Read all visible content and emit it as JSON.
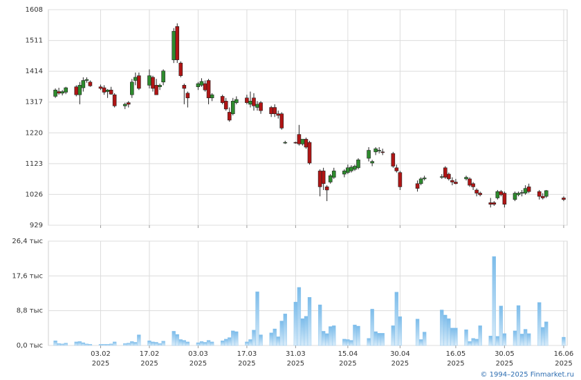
{
  "chart_data": [
    {
      "type": "candlestick",
      "x": [
        "2025-01-21",
        "2025-01-22",
        "2025-01-23",
        "2025-01-24",
        "2025-01-27",
        "2025-01-28",
        "2025-01-29",
        "2025-01-30",
        "2025-01-31",
        "2025-02-03",
        "2025-02-04",
        "2025-02-05",
        "2025-02-06",
        "2025-02-07",
        "2025-02-10",
        "2025-02-11",
        "2025-02-12",
        "2025-02-13",
        "2025-02-14",
        "2025-02-17",
        "2025-02-18",
        "2025-02-19",
        "2025-02-20",
        "2025-02-21",
        "2025-02-24",
        "2025-02-25",
        "2025-02-26",
        "2025-02-27",
        "2025-02-28",
        "2025-03-03",
        "2025-03-04",
        "2025-03-05",
        "2025-03-06",
        "2025-03-07",
        "2025-03-10",
        "2025-03-11",
        "2025-03-12",
        "2025-03-13",
        "2025-03-14",
        "2025-03-17",
        "2025-03-18",
        "2025-03-19",
        "2025-03-20",
        "2025-03-21",
        "2025-03-24",
        "2025-03-25",
        "2025-03-26",
        "2025-03-27",
        "2025-03-28",
        "2025-03-31",
        "2025-04-01",
        "2025-04-02",
        "2025-04-03",
        "2025-04-04",
        "2025-04-07",
        "2025-04-08",
        "2025-04-09",
        "2025-04-10",
        "2025-04-11",
        "2025-04-14",
        "2025-04-15",
        "2025-04-16",
        "2025-04-17",
        "2025-04-18",
        "2025-04-21",
        "2025-04-22",
        "2025-04-23",
        "2025-04-24",
        "2025-04-25",
        "2025-04-28",
        "2025-04-29",
        "2025-04-30",
        "2025-05-05",
        "2025-05-06",
        "2025-05-07",
        "2025-05-12",
        "2025-05-13",
        "2025-05-14",
        "2025-05-15",
        "2025-05-16",
        "2025-05-19",
        "2025-05-20",
        "2025-05-21",
        "2025-05-22",
        "2025-05-23",
        "2025-05-26",
        "2025-05-27",
        "2025-05-28",
        "2025-05-29",
        "2025-05-30",
        "2025-06-02",
        "2025-06-03",
        "2025-06-04",
        "2025-06-05",
        "2025-06-06",
        "2025-06-09",
        "2025-06-10",
        "2025-06-11",
        "2025-06-16"
      ],
      "open": [
        1335,
        1350,
        1345,
        1348,
        1365,
        1340,
        1362,
        1385,
        1380,
        1365,
        1362,
        1350,
        1355,
        1340,
        1305,
        1315,
        1340,
        1385,
        1400,
        1370,
        1395,
        1370,
        1365,
        1380,
        1450,
        1555,
        1440,
        1370,
        1345,
        1365,
        1370,
        1375,
        1385,
        1330,
        1335,
        1320,
        1285,
        1280,
        1315,
        1330,
        1310,
        1330,
        1300,
        1315,
        1300,
        1300,
        1280,
        1280,
        1190,
        1190,
        1215,
        1185,
        1200,
        1190,
        1100,
        1100,
        1050,
        1065,
        1080,
        1090,
        1095,
        1100,
        1105,
        1110,
        1140,
        1125,
        1160,
        1165,
        1160,
        1155,
        1110,
        1095,
        1060,
        1060,
        1075,
        1080,
        1110,
        1090,
        1070,
        1065,
        1075,
        1075,
        1060,
        1040,
        1030,
        1000,
        1000,
        1015,
        1035,
        1030,
        1010,
        1025,
        1030,
        1030,
        1050,
        1035,
        1020,
        1020,
        1015
      ],
      "high": [
        1360,
        1362,
        1355,
        1365,
        1370,
        1380,
        1395,
        1395,
        1385,
        1372,
        1370,
        1358,
        1365,
        1345,
        1315,
        1320,
        1390,
        1410,
        1410,
        1420,
        1400,
        1390,
        1375,
        1420,
        1550,
        1565,
        1445,
        1375,
        1350,
        1380,
        1392,
        1385,
        1390,
        1345,
        1340,
        1330,
        1300,
        1330,
        1335,
        1340,
        1350,
        1345,
        1320,
        1320,
        1305,
        1310,
        1290,
        1285,
        1195,
        1192,
        1245,
        1200,
        1205,
        1195,
        1105,
        1110,
        1055,
        1090,
        1110,
        1105,
        1120,
        1118,
        1120,
        1140,
        1175,
        1135,
        1175,
        1175,
        1170,
        1160,
        1120,
        1100,
        1070,
        1080,
        1085,
        1090,
        1115,
        1095,
        1080,
        1075,
        1085,
        1080,
        1065,
        1045,
        1035,
        1015,
        1005,
        1040,
        1040,
        1035,
        1035,
        1035,
        1040,
        1055,
        1060,
        1040,
        1030,
        1040,
        1020
      ],
      "low": [
        1330,
        1340,
        1338,
        1342,
        1335,
        1310,
        1350,
        1378,
        1365,
        1355,
        1340,
        1330,
        1340,
        1300,
        1295,
        1300,
        1330,
        1370,
        1355,
        1360,
        1350,
        1340,
        1355,
        1370,
        1440,
        1440,
        1395,
        1310,
        1300,
        1355,
        1365,
        1350,
        1310,
        1320,
        1310,
        1290,
        1255,
        1275,
        1310,
        1310,
        1300,
        1290,
        1290,
        1280,
        1270,
        1270,
        1265,
        1230,
        1185,
        1186,
        1180,
        1180,
        1170,
        1120,
        1020,
        1040,
        1005,
        1060,
        1075,
        1080,
        1090,
        1095,
        1100,
        1105,
        1130,
        1115,
        1150,
        1155,
        1150,
        1110,
        1095,
        1040,
        1035,
        1055,
        1070,
        1075,
        1075,
        1070,
        1055,
        1058,
        1070,
        1050,
        1040,
        1020,
        1020,
        985,
        990,
        1010,
        1020,
        985,
        1005,
        1020,
        1020,
        1025,
        1030,
        1010,
        1010,
        1015,
        1005
      ],
      "close": [
        1355,
        1345,
        1350,
        1362,
        1340,
        1370,
        1385,
        1388,
        1368,
        1360,
        1348,
        1355,
        1342,
        1305,
        1310,
        1310,
        1380,
        1395,
        1360,
        1400,
        1360,
        1340,
        1370,
        1415,
        1540,
        1450,
        1400,
        1360,
        1330,
        1375,
        1382,
        1355,
        1330,
        1340,
        1315,
        1295,
        1260,
        1320,
        1325,
        1315,
        1320,
        1305,
        1310,
        1290,
        1280,
        1280,
        1275,
        1235,
        1190,
        1188,
        1185,
        1200,
        1175,
        1125,
        1050,
        1060,
        1040,
        1085,
        1100,
        1100,
        1110,
        1112,
        1115,
        1135,
        1165,
        1130,
        1170,
        1165,
        1158,
        1115,
        1100,
        1050,
        1045,
        1075,
        1078,
        1082,
        1080,
        1075,
        1065,
        1060,
        1080,
        1055,
        1050,
        1030,
        1025,
        995,
        995,
        1035,
        1025,
        995,
        1030,
        1030,
        1032,
        1045,
        1035,
        1020,
        1015,
        1038,
        1010
      ],
      "up_color": "#2e8b2e",
      "down_color": "#b01515",
      "xlim": [
        "2025-01-19",
        "2025-06-17"
      ],
      "xticks": [
        {
          "value": "2025-02-03",
          "label": "03.02\n2025"
        },
        {
          "value": "2025-02-17",
          "label": "17.02\n2025"
        },
        {
          "value": "2025-03-03",
          "label": "03.03\n2025"
        },
        {
          "value": "2025-03-17",
          "label": "17.03\n2025"
        },
        {
          "value": "2025-03-31",
          "label": "31.03\n2025"
        },
        {
          "value": "2025-04-15",
          "label": "15.04\n2025"
        },
        {
          "value": "2025-04-30",
          "label": "30.04\n2025"
        },
        {
          "value": "2025-05-16",
          "label": "16.05\n2025"
        },
        {
          "value": "2025-05-30",
          "label": "30.05\n2025"
        },
        {
          "value": "2025-06-16",
          "label": "16.06\n2025"
        }
      ],
      "ylim": [
        929,
        1608
      ],
      "yticks": [
        929,
        1026,
        1123,
        1220,
        1317,
        1414,
        1511,
        1608
      ],
      "grid": true
    },
    {
      "type": "bar",
      "x": [
        "2025-01-21",
        "2025-01-22",
        "2025-01-23",
        "2025-01-24",
        "2025-01-27",
        "2025-01-28",
        "2025-01-29",
        "2025-01-30",
        "2025-01-31",
        "2025-02-03",
        "2025-02-04",
        "2025-02-05",
        "2025-02-06",
        "2025-02-07",
        "2025-02-10",
        "2025-02-11",
        "2025-02-12",
        "2025-02-13",
        "2025-02-14",
        "2025-02-17",
        "2025-02-18",
        "2025-02-19",
        "2025-02-20",
        "2025-02-21",
        "2025-02-24",
        "2025-02-25",
        "2025-02-26",
        "2025-02-27",
        "2025-02-28",
        "2025-03-03",
        "2025-03-04",
        "2025-03-05",
        "2025-03-06",
        "2025-03-07",
        "2025-03-10",
        "2025-03-11",
        "2025-03-12",
        "2025-03-13",
        "2025-03-14",
        "2025-03-17",
        "2025-03-18",
        "2025-03-19",
        "2025-03-20",
        "2025-03-21",
        "2025-03-24",
        "2025-03-25",
        "2025-03-26",
        "2025-03-27",
        "2025-03-28",
        "2025-03-31",
        "2025-04-01",
        "2025-04-02",
        "2025-04-03",
        "2025-04-04",
        "2025-04-07",
        "2025-04-08",
        "2025-04-09",
        "2025-04-10",
        "2025-04-11",
        "2025-04-14",
        "2025-04-15",
        "2025-04-16",
        "2025-04-17",
        "2025-04-18",
        "2025-04-21",
        "2025-04-22",
        "2025-04-23",
        "2025-04-24",
        "2025-04-25",
        "2025-04-28",
        "2025-04-29",
        "2025-04-30",
        "2025-05-05",
        "2025-05-06",
        "2025-05-07",
        "2025-05-12",
        "2025-05-13",
        "2025-05-14",
        "2025-05-15",
        "2025-05-16",
        "2025-05-19",
        "2025-05-20",
        "2025-05-21",
        "2025-05-22",
        "2025-05-23",
        "2025-05-26",
        "2025-05-27",
        "2025-05-28",
        "2025-05-29",
        "2025-05-30",
        "2025-06-02",
        "2025-06-03",
        "2025-06-04",
        "2025-06-05",
        "2025-06-06",
        "2025-06-09",
        "2025-06-10",
        "2025-06-11",
        "2025-06-16"
      ],
      "values": [
        1.2,
        0.5,
        0.4,
        0.6,
        0.9,
        1.0,
        0.7,
        0.4,
        0.3,
        0.3,
        0.3,
        0.3,
        0.4,
        0.9,
        0.5,
        0.6,
        1.0,
        0.8,
        2.7,
        1.2,
        0.9,
        0.8,
        0.5,
        1.1,
        3.6,
        2.8,
        1.5,
        1.3,
        0.9,
        0.7,
        1.0,
        0.8,
        1.3,
        0.9,
        1.2,
        1.6,
        2.0,
        3.7,
        3.5,
        0.9,
        1.5,
        3.9,
        13.6,
        2.7,
        3.2,
        4.2,
        2.2,
        6.2,
        8.0,
        11.0,
        14.7,
        6.8,
        7.4,
        12.2,
        10.3,
        3.6,
        3.0,
        4.8,
        5.0,
        1.6,
        1.5,
        1.3,
        5.2,
        4.9,
        1.8,
        9.2,
        3.5,
        3.1,
        3.1,
        5.0,
        13.5,
        7.3,
        6.7,
        1.5,
        3.4,
        9.0,
        7.7,
        6.8,
        4.4,
        4.4,
        4.0,
        1.0,
        1.8,
        1.6,
        5.0,
        2.4,
        22.5,
        2.3,
        10.0,
        3.0,
        3.7,
        10.1,
        2.9,
        4.1,
        3.0,
        10.9,
        4.6,
        6.0,
        2.1
      ],
      "color": "#7cbcea",
      "xlim": [
        "2025-01-19",
        "2025-06-17"
      ],
      "xticks": [
        {
          "value": "2025-02-03",
          "label": "03.02\n2025"
        },
        {
          "value": "2025-02-17",
          "label": "17.02\n2025"
        },
        {
          "value": "2025-03-03",
          "label": "03.03\n2025"
        },
        {
          "value": "2025-03-17",
          "label": "17.03\n2025"
        },
        {
          "value": "2025-03-31",
          "label": "31.03\n2025"
        },
        {
          "value": "2025-04-15",
          "label": "15.04\n2025"
        },
        {
          "value": "2025-04-30",
          "label": "30.04\n2025"
        },
        {
          "value": "2025-05-16",
          "label": "16.05\n2025"
        },
        {
          "value": "2025-05-30",
          "label": "30.05\n2025"
        },
        {
          "value": "2025-06-16",
          "label": "16.06\n2025"
        }
      ],
      "ylim": [
        0,
        26.4
      ],
      "yticks": [
        {
          "value": 0,
          "label": "0,0 тыс"
        },
        {
          "value": 8.8,
          "label": "8,8 тыс"
        },
        {
          "value": 17.6,
          "label": "17,6 тыс"
        },
        {
          "value": 26.4,
          "label": "26,4 тыс"
        }
      ],
      "grid": true
    }
  ],
  "footer": "© 1994–2025 Finmarket.ru"
}
